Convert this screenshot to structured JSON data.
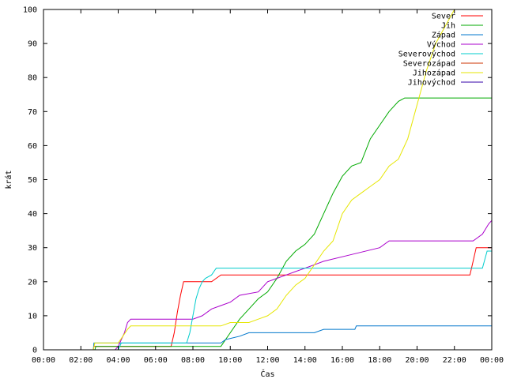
{
  "chart_data": {
    "type": "line",
    "title": "",
    "xlabel": "Čas",
    "ylabel": "krát",
    "xlim": [
      "00:00",
      "24:00"
    ],
    "ylim": [
      0,
      100
    ],
    "grid": false,
    "legend": "top-right",
    "x_ticks": [
      "00:00",
      "02:00",
      "04:00",
      "06:00",
      "08:00",
      "10:00",
      "12:00",
      "14:00",
      "16:00",
      "18:00",
      "20:00",
      "22:00",
      "00:00"
    ],
    "y_ticks": [
      "0",
      "10",
      "20",
      "30",
      "40",
      "50",
      "60",
      "70",
      "80",
      "90",
      "100"
    ],
    "series": [
      {
        "name": "Sever",
        "color": "#ff0000",
        "points": [
          [
            "00:00",
            0
          ],
          [
            "02:40",
            0
          ],
          [
            "02:42",
            1
          ],
          [
            "06:50",
            1
          ],
          [
            "07:00",
            5
          ],
          [
            "07:10",
            11
          ],
          [
            "07:20",
            16
          ],
          [
            "07:30",
            20
          ],
          [
            "09:00",
            20
          ],
          [
            "09:15",
            21
          ],
          [
            "09:30",
            22
          ],
          [
            "22:50",
            22
          ],
          [
            "23:00",
            26
          ],
          [
            "23:10",
            30
          ],
          [
            "24:00",
            30
          ]
        ]
      },
      {
        "name": "Jih",
        "color": "#00aa00",
        "points": [
          [
            "00:00",
            0
          ],
          [
            "02:45",
            0
          ],
          [
            "02:48",
            1
          ],
          [
            "09:30",
            1
          ],
          [
            "10:00",
            5
          ],
          [
            "10:30",
            9
          ],
          [
            "11:00",
            12
          ],
          [
            "11:30",
            15
          ],
          [
            "12:00",
            17
          ],
          [
            "12:30",
            21
          ],
          [
            "13:00",
            26
          ],
          [
            "13:30",
            29
          ],
          [
            "14:00",
            31
          ],
          [
            "14:30",
            34
          ],
          [
            "15:00",
            40
          ],
          [
            "15:30",
            46
          ],
          [
            "16:00",
            51
          ],
          [
            "16:30",
            54
          ],
          [
            "17:00",
            55
          ],
          [
            "17:30",
            62
          ],
          [
            "18:00",
            66
          ],
          [
            "18:30",
            70
          ],
          [
            "19:00",
            73
          ],
          [
            "19:20",
            74
          ],
          [
            "24:00",
            74
          ]
        ]
      },
      {
        "name": "Západ",
        "color": "#0077cc",
        "points": [
          [
            "00:00",
            0
          ],
          [
            "02:40",
            0
          ],
          [
            "02:42",
            2
          ],
          [
            "09:30",
            2
          ],
          [
            "09:45",
            3
          ],
          [
            "10:30",
            4
          ],
          [
            "11:00",
            5
          ],
          [
            "14:30",
            5
          ],
          [
            "15:00",
            6
          ],
          [
            "16:40",
            6
          ],
          [
            "16:45",
            7
          ],
          [
            "24:00",
            7
          ]
        ]
      },
      {
        "name": "Východ",
        "color": "#aa00cc",
        "points": [
          [
            "00:00",
            0
          ],
          [
            "03:50",
            0
          ],
          [
            "04:00",
            1
          ],
          [
            "04:20",
            5
          ],
          [
            "04:30",
            8
          ],
          [
            "04:40",
            9
          ],
          [
            "08:00",
            9
          ],
          [
            "08:30",
            10
          ],
          [
            "09:00",
            12
          ],
          [
            "09:30",
            13
          ],
          [
            "10:00",
            14
          ],
          [
            "10:30",
            16
          ],
          [
            "11:30",
            17
          ],
          [
            "12:00",
            20
          ],
          [
            "12:30",
            21
          ],
          [
            "13:00",
            22
          ],
          [
            "13:30",
            23
          ],
          [
            "14:00",
            24
          ],
          [
            "14:30",
            25
          ],
          [
            "15:00",
            26
          ],
          [
            "16:30",
            28
          ],
          [
            "18:00",
            30
          ],
          [
            "18:30",
            32
          ],
          [
            "23:00",
            32
          ],
          [
            "23:30",
            34
          ],
          [
            "23:50",
            37
          ],
          [
            "24:00",
            38
          ]
        ]
      },
      {
        "name": "Severovýchod",
        "color": "#00cccc",
        "points": [
          [
            "00:00",
            0
          ],
          [
            "04:00",
            0
          ],
          [
            "04:10",
            2
          ],
          [
            "07:40",
            2
          ],
          [
            "07:50",
            5
          ],
          [
            "08:00",
            10
          ],
          [
            "08:10",
            15
          ],
          [
            "08:20",
            18
          ],
          [
            "08:30",
            20
          ],
          [
            "08:40",
            21
          ],
          [
            "09:00",
            22
          ],
          [
            "09:15",
            24
          ],
          [
            "23:30",
            24
          ],
          [
            "23:45",
            29
          ],
          [
            "24:00",
            29
          ]
        ]
      },
      {
        "name": "Severozápad",
        "color": "#cc3300",
        "points": [
          [
            "00:00",
            0
          ],
          [
            "24:00",
            0
          ]
        ]
      },
      {
        "name": "Jihozápad",
        "color": "#e6e600",
        "points": [
          [
            "00:00",
            0
          ],
          [
            "02:40",
            0
          ],
          [
            "02:45",
            2
          ],
          [
            "04:00",
            2
          ],
          [
            "04:15",
            4
          ],
          [
            "04:30",
            6
          ],
          [
            "04:40",
            7
          ],
          [
            "09:30",
            7
          ],
          [
            "10:00",
            8
          ],
          [
            "11:00",
            8
          ],
          [
            "11:30",
            9
          ],
          [
            "12:00",
            10
          ],
          [
            "12:30",
            12
          ],
          [
            "13:00",
            16
          ],
          [
            "13:30",
            19
          ],
          [
            "14:00",
            21
          ],
          [
            "14:30",
            25
          ],
          [
            "15:00",
            29
          ],
          [
            "15:30",
            32
          ],
          [
            "16:00",
            40
          ],
          [
            "16:30",
            44
          ],
          [
            "17:00",
            46
          ],
          [
            "17:30",
            48
          ],
          [
            "18:00",
            50
          ],
          [
            "18:30",
            54
          ],
          [
            "19:00",
            56
          ],
          [
            "19:30",
            62
          ],
          [
            "20:00",
            72
          ],
          [
            "20:30",
            82
          ],
          [
            "21:00",
            90
          ],
          [
            "21:30",
            95
          ],
          [
            "22:00",
            100
          ]
        ]
      },
      {
        "name": "Jihovýchod",
        "color": "#3300aa",
        "points": [
          [
            "00:00",
            0
          ],
          [
            "24:00",
            0
          ]
        ]
      }
    ]
  }
}
